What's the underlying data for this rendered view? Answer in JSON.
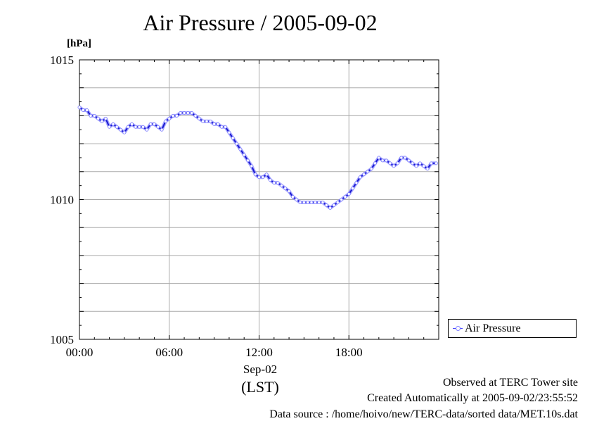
{
  "chart_data": {
    "type": "line",
    "title": "Air Pressure / 2005-09-02",
    "ylabel": "[hPa]",
    "xlabel_date": "Sep-02",
    "xlabel_tz": "(LST)",
    "ylim": [
      1005,
      1015
    ],
    "xlim_hours": [
      0,
      24
    ],
    "y_ticks": [
      "1005",
      "1010",
      "1015"
    ],
    "x_ticks": [
      {
        "hour": 0,
        "label": "00:00"
      },
      {
        "hour": 6,
        "label": "06:00"
      },
      {
        "hour": 12,
        "label": "12:00"
      },
      {
        "hour": 18,
        "label": "18:00"
      }
    ],
    "grid": true,
    "legend_position": "bottom-right outside",
    "series": [
      {
        "name": "Air Pressure",
        "color": "#3333ff",
        "points": [
          [
            "00:00",
            1013.3
          ],
          [
            "00:15",
            1013.2
          ],
          [
            "00:30",
            1013.2
          ],
          [
            "00:45",
            1013.0
          ],
          [
            "01:00",
            1013.0
          ],
          [
            "01:15",
            1012.9
          ],
          [
            "01:30",
            1012.8
          ],
          [
            "01:45",
            1012.9
          ],
          [
            "02:00",
            1012.6
          ],
          [
            "02:15",
            1012.7
          ],
          [
            "02:30",
            1012.6
          ],
          [
            "02:45",
            1012.5
          ],
          [
            "03:00",
            1012.4
          ],
          [
            "03:15",
            1012.6
          ],
          [
            "03:30",
            1012.7
          ],
          [
            "03:45",
            1012.6
          ],
          [
            "04:00",
            1012.6
          ],
          [
            "04:15",
            1012.6
          ],
          [
            "04:30",
            1012.5
          ],
          [
            "04:45",
            1012.7
          ],
          [
            "05:00",
            1012.7
          ],
          [
            "05:15",
            1012.6
          ],
          [
            "05:30",
            1012.5
          ],
          [
            "05:45",
            1012.8
          ],
          [
            "06:00",
            1012.9
          ],
          [
            "06:15",
            1013.0
          ],
          [
            "06:30",
            1013.0
          ],
          [
            "06:45",
            1013.1
          ],
          [
            "07:00",
            1013.1
          ],
          [
            "07:15",
            1013.1
          ],
          [
            "07:30",
            1013.1
          ],
          [
            "07:45",
            1013.0
          ],
          [
            "08:00",
            1012.9
          ],
          [
            "08:15",
            1012.8
          ],
          [
            "08:30",
            1012.8
          ],
          [
            "08:45",
            1012.8
          ],
          [
            "09:00",
            1012.7
          ],
          [
            "09:15",
            1012.7
          ],
          [
            "09:30",
            1012.6
          ],
          [
            "09:45",
            1012.6
          ],
          [
            "10:00",
            1012.4
          ],
          [
            "10:15",
            1012.2
          ],
          [
            "10:30",
            1012.0
          ],
          [
            "10:45",
            1011.8
          ],
          [
            "11:00",
            1011.6
          ],
          [
            "11:15",
            1011.4
          ],
          [
            "11:30",
            1011.2
          ],
          [
            "11:45",
            1010.9
          ],
          [
            "12:00",
            1010.8
          ],
          [
            "12:15",
            1010.8
          ],
          [
            "12:30",
            1010.9
          ],
          [
            "12:45",
            1010.7
          ],
          [
            "13:00",
            1010.6
          ],
          [
            "13:15",
            1010.6
          ],
          [
            "13:30",
            1010.5
          ],
          [
            "13:45",
            1010.4
          ],
          [
            "14:00",
            1010.3
          ],
          [
            "14:15",
            1010.1
          ],
          [
            "14:30",
            1010.0
          ],
          [
            "14:45",
            1009.9
          ],
          [
            "15:00",
            1009.9
          ],
          [
            "15:15",
            1009.9
          ],
          [
            "15:30",
            1009.9
          ],
          [
            "15:45",
            1009.9
          ],
          [
            "16:00",
            1009.9
          ],
          [
            "16:15",
            1009.9
          ],
          [
            "16:30",
            1009.8
          ],
          [
            "16:45",
            1009.7
          ],
          [
            "17:00",
            1009.8
          ],
          [
            "17:15",
            1009.9
          ],
          [
            "17:30",
            1010.0
          ],
          [
            "17:45",
            1010.1
          ],
          [
            "18:00",
            1010.2
          ],
          [
            "18:15",
            1010.4
          ],
          [
            "18:30",
            1010.6
          ],
          [
            "18:45",
            1010.8
          ],
          [
            "19:00",
            1010.9
          ],
          [
            "19:15",
            1011.0
          ],
          [
            "19:30",
            1011.1
          ],
          [
            "19:45",
            1011.3
          ],
          [
            "20:00",
            1011.5
          ],
          [
            "20:15",
            1011.4
          ],
          [
            "20:30",
            1011.4
          ],
          [
            "20:45",
            1011.3
          ],
          [
            "21:00",
            1011.2
          ],
          [
            "21:15",
            1011.3
          ],
          [
            "21:30",
            1011.5
          ],
          [
            "21:45",
            1011.5
          ],
          [
            "22:00",
            1011.4
          ],
          [
            "22:15",
            1011.3
          ],
          [
            "22:30",
            1011.2
          ],
          [
            "22:45",
            1011.3
          ],
          [
            "23:00",
            1011.2
          ],
          [
            "23:15",
            1011.1
          ],
          [
            "23:30",
            1011.3
          ],
          [
            "23:50",
            1011.3
          ]
        ]
      }
    ]
  },
  "footer": {
    "observed": "Observed at TERC Tower site",
    "created": "Created Automatically at 2005-09-02/23:55:52",
    "source": "Data source : /home/hoivo/new/TERC-data/sorted  data/MET.10s.dat"
  }
}
